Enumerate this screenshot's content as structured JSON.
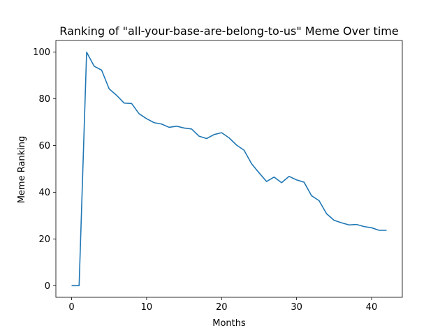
{
  "chart_data": {
    "type": "line",
    "title": "Ranking of \"all-your-base-are-belong-to-us\" Meme Over time",
    "xlabel": "Months",
    "ylabel": "Meme Ranking",
    "xlim": [
      -2.1,
      44.1
    ],
    "ylim": [
      -5,
      105
    ],
    "xticks": [
      0,
      10,
      20,
      30,
      40
    ],
    "yticks": [
      0,
      20,
      40,
      60,
      80,
      100
    ],
    "grid": false,
    "line_color": "#1f77b4",
    "series": [
      {
        "x": [
          0,
          1,
          2,
          3,
          4,
          5,
          6,
          7,
          8,
          9,
          10,
          11,
          12,
          13,
          14,
          15,
          16,
          17,
          18,
          19,
          20,
          21,
          22,
          23,
          24,
          25,
          26,
          27,
          28,
          29,
          30,
          31,
          32,
          33,
          34,
          35,
          36,
          37,
          38,
          39,
          40,
          41,
          42
        ],
        "values": [
          0,
          0,
          100,
          94,
          92.3,
          84.3,
          81.5,
          78.2,
          78,
          73.6,
          71.5,
          69.8,
          69.2,
          67.8,
          68.3,
          67.5,
          67.1,
          64,
          63,
          64.7,
          65.5,
          63.3,
          60.2,
          58,
          52.2,
          48.3,
          44.6,
          46.5,
          44.1,
          46.8,
          45.3,
          44.3,
          38.5,
          36.4,
          30.8,
          28,
          26.9,
          26,
          26.2,
          25.3,
          24.8,
          23.7,
          23.7
        ]
      }
    ]
  }
}
